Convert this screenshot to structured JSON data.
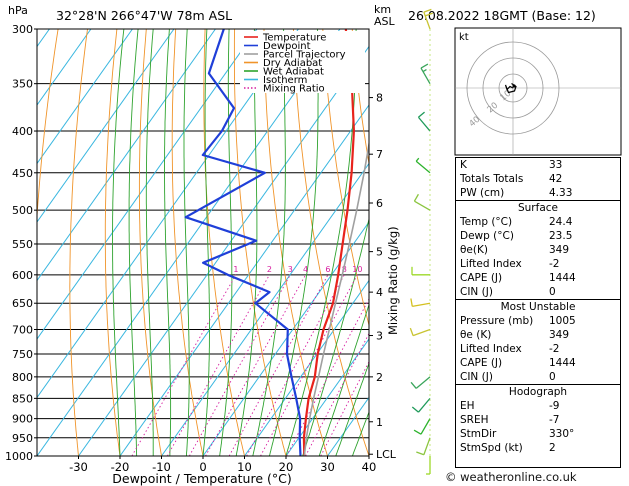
{
  "header": {
    "location": "32°28'N  266°47'W  78m  ASL",
    "datetime": "26.08.2022  18GMT  (Base: 12)",
    "hpa_label": "hPa",
    "km_label": "km",
    "asl_label": "ASL"
  },
  "chart_data": {
    "type": "skew-t",
    "xlabel": "Dewpoint / Temperature (°C)",
    "ylabel_right": "Mixing Ratio (g/kg)",
    "xlim": [
      -40,
      40
    ],
    "ylim_hpa": [
      1000,
      300
    ],
    "pressure_ticks": [
      300,
      350,
      400,
      450,
      500,
      550,
      600,
      650,
      700,
      750,
      800,
      850,
      900,
      950,
      1000
    ],
    "temperature_ticks": [
      -30,
      -20,
      -10,
      0,
      10,
      20,
      30,
      40
    ],
    "km_ticks": [
      {
        "label": "8",
        "p": 364
      },
      {
        "label": "7",
        "p": 427
      },
      {
        "label": "6",
        "p": 490
      },
      {
        "label": "5",
        "p": 562
      },
      {
        "label": "4",
        "p": 630
      },
      {
        "label": "3",
        "p": 712
      },
      {
        "label": "2",
        "p": 800
      },
      {
        "label": "1",
        "p": 908
      },
      {
        "label": "LCL",
        "p": 995
      }
    ],
    "mixing_ratio_labels": [
      "1",
      "2",
      "3",
      "4",
      "6",
      "8",
      "10",
      "15",
      "20",
      "25"
    ],
    "legend": [
      "Temperature",
      "Dewpoint",
      "Parcel Trajectory",
      "Dry Adiabat",
      "Wet Adiabat",
      "Isotherm",
      "Mixing Ratio"
    ],
    "series": [
      {
        "name": "Temperature",
        "color": "#e8231c",
        "points": [
          [
            1000,
            24.4
          ],
          [
            950,
            21.2
          ],
          [
            900,
            18.4
          ],
          [
            850,
            15.6
          ],
          [
            800,
            13.4
          ],
          [
            750,
            10.2
          ],
          [
            700,
            7.4
          ],
          [
            650,
            5.2
          ],
          [
            600,
            1.6
          ],
          [
            550,
            -2.6
          ],
          [
            500,
            -7.2
          ],
          [
            450,
            -12.6
          ],
          [
            400,
            -19.2
          ],
          [
            350,
            -27.8
          ],
          [
            300,
            -38.6
          ]
        ]
      },
      {
        "name": "Dewpoint",
        "color": "#1f3fd8",
        "points": [
          [
            1000,
            23.5
          ],
          [
            950,
            20.2
          ],
          [
            900,
            17.0
          ],
          [
            850,
            12.6
          ],
          [
            800,
            7.8
          ],
          [
            750,
            2.8
          ],
          [
            700,
            -1.2
          ],
          [
            650,
            -13.5
          ],
          [
            630,
            -12.0
          ],
          [
            600,
            -25.0
          ],
          [
            580,
            -33.0
          ],
          [
            545,
            -24.0
          ],
          [
            510,
            -45.0
          ],
          [
            450,
            -33.5
          ],
          [
            428,
            -51.5
          ],
          [
            400,
            -51.0
          ],
          [
            375,
            -52.0
          ],
          [
            340,
            -64.0
          ],
          [
            300,
            -68.0
          ]
        ]
      },
      {
        "name": "Parcel Trajectory",
        "color": "#a0a0a0",
        "points": [
          [
            1000,
            24.4
          ],
          [
            950,
            21.8
          ],
          [
            900,
            19.3
          ],
          [
            850,
            16.8
          ],
          [
            800,
            14.3
          ],
          [
            750,
            11.6
          ],
          [
            700,
            8.8
          ],
          [
            650,
            5.8
          ],
          [
            600,
            2.6
          ],
          [
            550,
            -1.0
          ],
          [
            500,
            -5.0
          ],
          [
            450,
            -9.6
          ],
          [
            400,
            -15.0
          ],
          [
            350,
            -21.4
          ],
          [
            300,
            -29.0
          ]
        ]
      }
    ],
    "wind_profile": [
      {
        "p": 1000,
        "dir_deg": 180,
        "speed_kt": 5
      },
      {
        "p": 950,
        "dir_deg": 200,
        "speed_kt": 10
      },
      {
        "p": 900,
        "dir_deg": 210,
        "speed_kt": 10
      },
      {
        "p": 850,
        "dir_deg": 220,
        "speed_kt": 10
      },
      {
        "p": 800,
        "dir_deg": 230,
        "speed_kt": 10
      },
      {
        "p": 700,
        "dir_deg": 250,
        "speed_kt": 10
      },
      {
        "p": 650,
        "dir_deg": 260,
        "speed_kt": 10
      },
      {
        "p": 600,
        "dir_deg": 270,
        "speed_kt": 10
      },
      {
        "p": 500,
        "dir_deg": 300,
        "speed_kt": 10
      },
      {
        "p": 450,
        "dir_deg": 310,
        "speed_kt": 5
      },
      {
        "p": 400,
        "dir_deg": 320,
        "speed_kt": 10
      },
      {
        "p": 350,
        "dir_deg": 330,
        "speed_kt": 15
      },
      {
        "p": 300,
        "dir_deg": 340,
        "speed_kt": 20
      }
    ],
    "wind_colors": [
      "#9dd82a",
      "#8bc53f",
      "#2db32d",
      "#1f9a5a",
      "#3aa55b",
      "#c9c432",
      "#d4c020"
    ],
    "hodograph": {
      "unit_label": "kt",
      "ring_labels": [
        "10",
        "20",
        "40"
      ],
      "points": [
        [
          0,
          0
        ],
        [
          -2,
          1
        ],
        [
          -4,
          -1
        ],
        [
          -5,
          2
        ],
        [
          -3,
          -3
        ],
        [
          1,
          -2
        ],
        [
          2,
          1
        ],
        [
          -1,
          3
        ]
      ]
    }
  },
  "indices": {
    "k_label": "K",
    "k": "33",
    "tt_label": "Totals Totals",
    "tt": "42",
    "pw_label": "PW (cm)",
    "pw": "4.33"
  },
  "surface": {
    "title": "Surface",
    "temp_label": "Temp (°C)",
    "temp": "24.4",
    "dewp_label": "Dewp (°C)",
    "dewp": "23.5",
    "theta_label": "θe(K)",
    "theta": "349",
    "li_label": "Lifted Index",
    "li": "-2",
    "cape_label": "CAPE (J)",
    "cape": "1444",
    "cin_label": "CIN (J)",
    "cin": "0"
  },
  "most_unstable": {
    "title": "Most Unstable",
    "pressure_label": "Pressure (mb)",
    "pressure": "1005",
    "theta_label": "θe (K)",
    "theta": "349",
    "li_label": "Lifted Index",
    "li": "-2",
    "cape_label": "CAPE (J)",
    "cape": "1444",
    "cin_label": "CIN (J)",
    "cin": "0"
  },
  "hodograph_table": {
    "title": "Hodograph",
    "eh_label": "EH",
    "eh": "-9",
    "sreh_label": "SREH",
    "sreh": "-7",
    "stmdir_label": "StmDir",
    "stmdir": "330°",
    "stmspd_label": "StmSpd (kt)",
    "stmspd": "2"
  },
  "copyright": "© weatheronline.co.uk"
}
